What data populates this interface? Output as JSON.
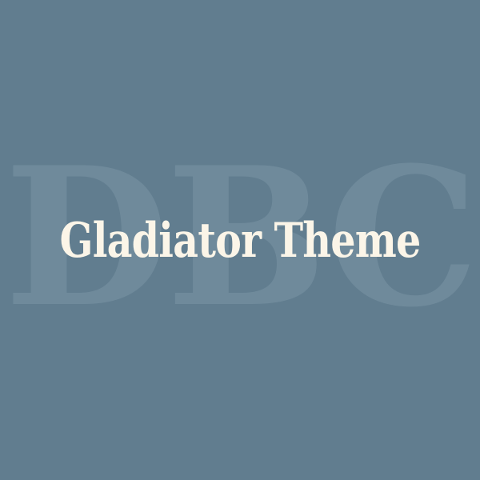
{
  "watermark": {
    "text": "DBC"
  },
  "title": {
    "text": "Gladiator Theme"
  },
  "colors": {
    "background": "#617d8f",
    "watermark": "#6f8a9b",
    "title": "#fbf5e8"
  }
}
